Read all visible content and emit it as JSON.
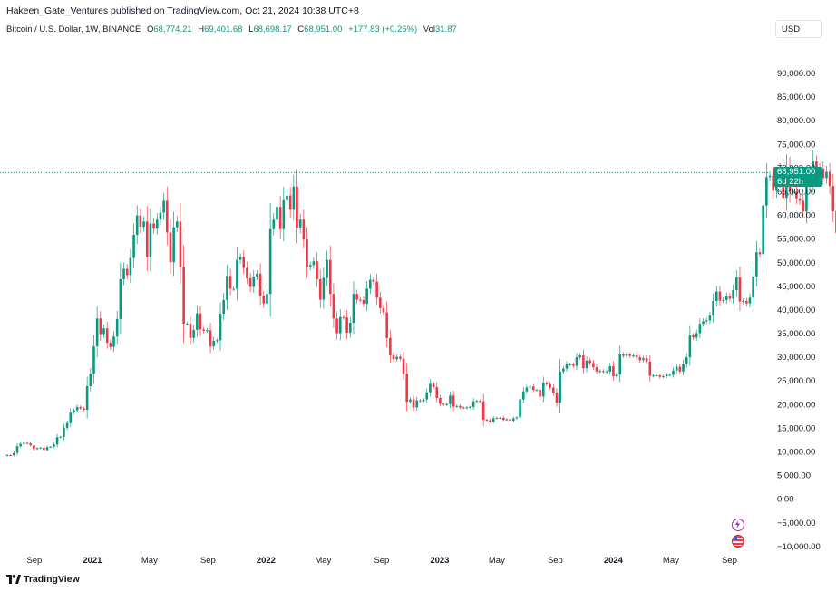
{
  "publisher_line": "Hakeen_Gate_Ventures published on TradingView.com, Oct 21, 2024 10:38 UTC+8",
  "legend": {
    "symbol": "Bitcoin / U.S. Dollar, 1W, BINANCE",
    "o_label": "O",
    "o_value": "68,774.21",
    "h_label": "H",
    "h_value": "69,401.68",
    "l_label": "L",
    "l_value": "68,698.17",
    "c_label": "C",
    "c_value": "68,951.00",
    "change": "+177.83 (+0.26%)",
    "vol_label": "Vol",
    "vol_value": "31.87"
  },
  "currency": "USD",
  "price_badge": {
    "price": "68,951.00",
    "countdown": "6d 22h"
  },
  "brand": "TradingView",
  "icons": [
    "flash-icon",
    "us-flag-icon",
    "tradingview-logo-icon"
  ],
  "colors": {
    "up": "#089981",
    "down": "#f23645",
    "last_price_line": "#089981"
  },
  "chart_data": {
    "type": "candlestick",
    "title": "",
    "xlabel": "",
    "ylabel": "",
    "ylim": [
      -13000,
      97000
    ],
    "y_ticks": [
      "90,000.00",
      "85,000.00",
      "80,000.00",
      "75,000.00",
      "70,000.00",
      "65,000.00",
      "60,000.00",
      "55,000.00",
      "50,000.00",
      "45,000.00",
      "40,000.00",
      "35,000.00",
      "30,000.00",
      "25,000.00",
      "20,000.00",
      "15,000.00",
      "10,000.00",
      "5,000.00",
      "0.00",
      "−5,000.00",
      "−10,000.00"
    ],
    "y_tick_values": [
      90000,
      85000,
      80000,
      75000,
      70000,
      65000,
      60000,
      55000,
      50000,
      45000,
      40000,
      35000,
      30000,
      25000,
      20000,
      15000,
      10000,
      5000,
      0,
      -5000,
      -10000
    ],
    "x_ticks": [
      "Sep",
      "2021",
      "May",
      "Sep",
      "2022",
      "May",
      "Sep",
      "2023",
      "May",
      "Sep",
      "2024",
      "May",
      "Sep"
    ],
    "x_tick_dates": [
      "2020-09-01",
      "2021-01-01",
      "2021-05-01",
      "2021-09-01",
      "2022-01-01",
      "2022-05-01",
      "2022-09-01",
      "2023-01-01",
      "2023-05-01",
      "2023-09-01",
      "2024-01-01",
      "2024-05-01",
      "2024-09-01"
    ],
    "x_range": [
      "2020-07-06",
      "2024-11-04"
    ],
    "grid": false,
    "last_price": 68951.0,
    "series": [
      {
        "name": "Bitcoin / U.S. Dollar",
        "interval": "1W",
        "first_candle_date": "2020-07-06",
        "close": [
          9230,
          9200,
          9700,
          11100,
          11600,
          11800,
          11700,
          11300,
          10500,
          10700,
          10800,
          10300,
          10900,
          11000,
          11500,
          13000,
          13100,
          15000,
          16000,
          18200,
          18700,
          19400,
          19100,
          18800,
          23800,
          26400,
          32200,
          38100,
          34800,
          36000,
          33000,
          32100,
          34300,
          38000,
          46400,
          48600,
          47300,
          50900,
          55800,
          59900,
          57500,
          58600,
          51000,
          58200,
          57100,
          59000,
          60500,
          63000,
          56300,
          50000,
          57400,
          58600,
          49000,
          37000,
          37000,
          34000,
          35700,
          39200,
          35800,
          35500,
          35600,
          32200,
          33400,
          33500,
          39100,
          42000,
          47100,
          44400,
          44400,
          50500,
          51100,
          48800,
          46600,
          44800,
          47000,
          47600,
          42900,
          41300,
          43300,
          57000,
          59000,
          61700,
          57000,
          63100,
          64100,
          61100,
          66000,
          57300,
          59000,
          54800,
          49000,
          49400,
          50200,
          46400,
          42100,
          46700,
          50500,
          43300,
          38100,
          35000,
          38400,
          38300,
          35100,
          37200,
          43300,
          42100,
          42000,
          41200,
          44400,
          46300,
          45900,
          42500,
          40300,
          39400,
          34000,
          30300,
          29500,
          30000,
          29600,
          26400,
          20500,
          21000,
          19300,
          20800,
          20600,
          21000,
          22500,
          24300,
          23600,
          21300,
          20100,
          19900,
          20000,
          21800,
          19500,
          19600,
          19300,
          19200,
          19300,
          19400,
          20600,
          20700,
          20600,
          16700,
          16600,
          16300,
          17000,
          17100,
          17100,
          16700,
          16800,
          16500,
          17000,
          17200,
          21000,
          22700,
          23500,
          23700,
          23000,
          23000,
          21600,
          24500,
          24200,
          23500,
          22400,
          20300,
          26900,
          27500,
          28400,
          28400,
          28100,
          29900,
          30300,
          27600,
          29200,
          28700,
          27800,
          26900,
          27000,
          26800,
          26900,
          28000,
          25900,
          26300,
          30500,
          30200,
          30500,
          30200,
          30300,
          29900,
          29300,
          29700,
          29000,
          26000,
          26100,
          26100,
          25800,
          25900,
          26200,
          26200,
          27100,
          27900,
          26900,
          28500,
          29900,
          34500,
          34100,
          35000,
          37000,
          37500,
          37700,
          38700,
          41800,
          43800,
          41900,
          42000,
          42800,
          42300,
          44100,
          46800,
          41700,
          41800,
          41300,
          42500,
          47000,
          52100,
          51700,
          62000,
          68000,
          68300,
          65100,
          67200,
          69400,
          63600,
          69800,
          64900,
          64900,
          63500,
          63000,
          60700,
          66300,
          67000,
          71300,
          70000,
          69800,
          67800,
          69100,
          66100,
          60800,
          56100,
          57000,
          61100,
          63000,
          66800,
          67800,
          63900,
          60400,
          61700,
          56000,
          58500,
          64000,
          59000,
          53100,
          58000,
          60000,
          58100,
          55000,
          54700,
          64000,
          63100,
          66000,
          63600,
          62200,
          68951
        ],
        "note": "weekly closes read off the chart; each candle opens at the previous close"
      }
    ]
  }
}
